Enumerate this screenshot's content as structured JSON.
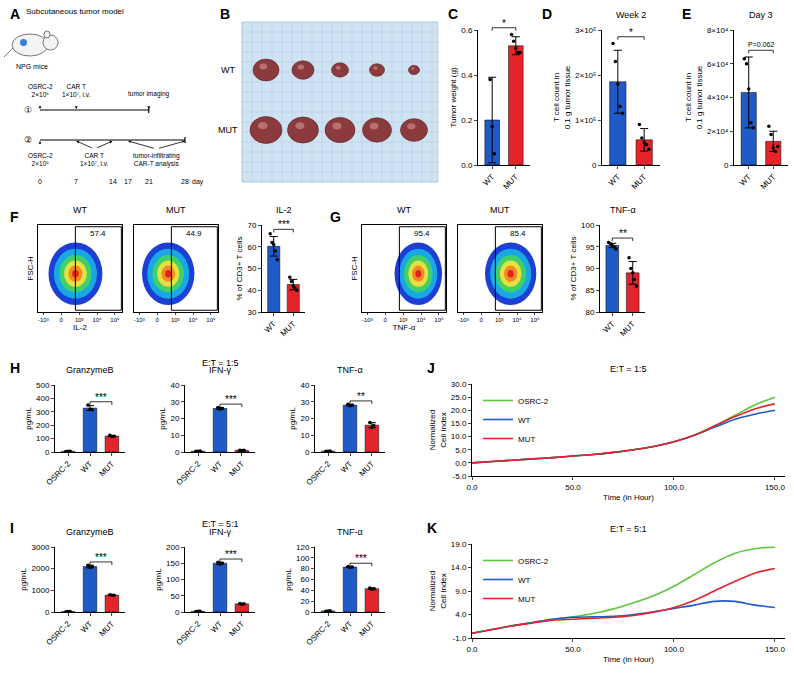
{
  "chart_data": [
    {
      "panel": "C",
      "type": "bar",
      "ylabel": "Tumor weight (g)",
      "categories": [
        "WT",
        "MUT"
      ],
      "colors": [
        "#1e5bc6",
        "#e3242b"
      ],
      "values": [
        0.2,
        0.53
      ],
      "error": [
        0.19,
        0.04
      ],
      "points": [
        [
          0.38,
          0.17,
          0.05
        ],
        [
          0.58,
          0.55,
          0.52,
          0.5,
          0.5
        ]
      ],
      "ylim": [
        0,
        0.6
      ],
      "yticks": [
        {
          "value": 0,
          "label": "0.0"
        },
        0.2,
        0.4,
        0.6
      ],
      "annotation": "*"
    },
    {
      "panel": "D",
      "type": "bar",
      "title": "Week 2",
      "ylabel": "T cell count in 0.1 g tumor tissue",
      "categories": [
        "WT",
        "MUT"
      ],
      "colors": [
        "#1e5bc6",
        "#e3242b"
      ],
      "values": [
        185000,
        56000
      ],
      "error": [
        70000,
        25000
      ],
      "points": [
        [
          270000,
          230000,
          180000,
          130000,
          115000
        ],
        [
          90000,
          60000,
          50000,
          45000,
          35000
        ]
      ],
      "ylim": [
        0,
        300000
      ],
      "yticks": [
        0,
        {
          "value": 100000,
          "label": "1×10⁵"
        },
        {
          "value": 200000,
          "label": "2×10⁵"
        },
        {
          "value": 300000,
          "label": "3×10⁵"
        }
      ],
      "annotation": "*"
    },
    {
      "panel": "E",
      "type": "bar",
      "title": "Day 3",
      "ylabel": "T cell count in 0.1 g tumor tissue",
      "categories": [
        "WT",
        "MUT"
      ],
      "colors": [
        "#1e5bc6",
        "#e3242b"
      ],
      "values": [
        43000,
        14000
      ],
      "error": [
        21000,
        6000
      ],
      "points": [
        [
          63000,
          60000,
          45000,
          25000,
          22000
        ],
        [
          23000,
          18000,
          10000,
          8000,
          11000
        ]
      ],
      "ylim": [
        0,
        80000
      ],
      "yticks": [
        0,
        {
          "value": 20000,
          "label": "2×10⁴"
        },
        {
          "value": 40000,
          "label": "4×10⁴"
        },
        {
          "value": 60000,
          "label": "6×10⁴"
        },
        {
          "value": 80000,
          "label": "8×10⁴"
        }
      ],
      "annotation": "P=0.062"
    },
    {
      "panel": "F",
      "type": "density",
      "title": "WT",
      "xlabel": "IL-2",
      "ylabel": "FSC-H",
      "xlim": [
        -2000,
        250000
      ],
      "xticks": [
        {
          "value": -1000,
          "label": "-10³"
        },
        0,
        {
          "value": 1000,
          "label": "10³"
        },
        {
          "value": 10000,
          "label": "10⁴"
        },
        {
          "value": 100000,
          "label": "10⁵"
        }
      ],
      "ylim": [
        0,
        250000
      ],
      "tick_labels": "x",
      "population_x": [
        -500,
        20000
      ],
      "population_y": [
        20000,
        200000
      ],
      "gate_x": [
        600,
        230000
      ],
      "gate_y": [
        5000,
        245000
      ],
      "gate_label": "57.4"
    },
    {
      "type": "density",
      "title": "MUT",
      "xlim": [
        -2000,
        250000
      ],
      "xticks": [
        {
          "value": -1000,
          "label": "-10³"
        },
        0,
        {
          "value": 1000,
          "label": "10³"
        },
        {
          "value": 10000,
          "label": "10⁴"
        },
        {
          "value": 100000,
          "label": "10⁵"
        }
      ],
      "ylim": [
        0,
        250000
      ],
      "tick_labels": "x",
      "population_x": [
        -700,
        12000
      ],
      "population_y": [
        20000,
        200000
      ],
      "gate_x": [
        600,
        230000
      ],
      "gate_y": [
        5000,
        245000
      ],
      "gate_label": "44.9"
    },
    {
      "type": "bar",
      "title": "IL-2",
      "ylabel": "% of CD3+ T cells",
      "categories": [
        "WT",
        "MUT"
      ],
      "colors": [
        "#1e5bc6",
        "#e3242b"
      ],
      "values": [
        60.2,
        42.6
      ],
      "error": [
        4.5,
        2.4
      ],
      "points": [
        [
          66,
          62,
          61,
          58,
          54
        ],
        [
          46,
          44,
          42,
          41,
          40
        ]
      ],
      "ylim": [
        30,
        70
      ],
      "yticks": [
        30,
        40,
        50,
        60,
        70
      ],
      "annotation": "***"
    },
    {
      "panel": "G",
      "type": "density",
      "title": "WT",
      "xlabel": "TNF-α",
      "ylabel": "FSC-H",
      "xlim": [
        -2000,
        250000
      ],
      "xticks": [
        {
          "value": -1000,
          "label": "-10³"
        },
        0,
        {
          "value": 1000,
          "label": "10³"
        },
        {
          "value": 10000,
          "label": "10⁴"
        },
        {
          "value": 100000,
          "label": "10⁵"
        }
      ],
      "ylim": [
        0,
        250000
      ],
      "tick_labels": "x",
      "population_x": [
        300,
        150000
      ],
      "population_y": [
        20000,
        200000
      ],
      "gate_x": [
        600,
        230000
      ],
      "gate_y": [
        5000,
        245000
      ],
      "gate_label": "95.4"
    },
    {
      "type": "density",
      "title": "MUT",
      "xlim": [
        -2000,
        250000
      ],
      "xticks": [
        {
          "value": -1000,
          "label": "-10³"
        },
        0,
        {
          "value": 1000,
          "label": "10³"
        },
        {
          "value": 10000,
          "label": "10⁴"
        },
        {
          "value": 100000,
          "label": "10⁵"
        }
      ],
      "ylim": [
        0,
        250000
      ],
      "tick_labels": "x",
      "population_x": [
        100,
        120000
      ],
      "population_y": [
        20000,
        200000
      ],
      "gate_x": [
        600,
        230000
      ],
      "gate_y": [
        5000,
        245000
      ],
      "gate_label": "85.4"
    },
    {
      "type": "bar",
      "title": "TNF-α",
      "ylabel": "% of CD3+ T cells",
      "categories": [
        "WT",
        "MUT"
      ],
      "colors": [
        "#1e5bc6",
        "#e3242b"
      ],
      "values": [
        95.3,
        89
      ],
      "error": [
        0.5,
        2.6
      ],
      "points": [
        [
          96,
          95.7,
          95.3,
          95,
          94.5
        ],
        [
          92.5,
          90,
          89,
          87.5,
          86
        ]
      ],
      "ylim": [
        80,
        100
      ],
      "yticks": [
        80,
        85,
        90,
        95,
        100
      ],
      "annotation": "**"
    },
    {
      "panel": "H",
      "group_title": "E:T = 1:5",
      "type": "bar",
      "title": "GranzymeB",
      "ylabel": "pg/mL",
      "categories": [
        "OSRC-2",
        "WT",
        "MUT"
      ],
      "colors": [
        "#3cb44b",
        "#1e5bc6",
        "#e3242b"
      ],
      "values": [
        5,
        328,
        119
      ],
      "error": [
        2,
        18,
        5
      ],
      "points": [
        [
          4,
          5,
          6
        ],
        [
          350,
          318,
          316
        ],
        [
          125,
          115,
          117
        ]
      ],
      "ylim": [
        0,
        500
      ],
      "yticks": [
        0,
        100,
        200,
        300,
        400,
        500
      ],
      "annotation": "***"
    },
    {
      "type": "bar",
      "title": "IFN-γ",
      "ylabel": "pg/mL",
      "categories": [
        "OSRC-2",
        "WT",
        "MUT"
      ],
      "colors": [
        "#3cb44b",
        "#1e5bc6",
        "#e3242b"
      ],
      "values": [
        0.5,
        26,
        1
      ],
      "error": [
        0.2,
        0.6,
        0.2
      ],
      "points": [
        [
          0.4,
          0.5,
          0.6
        ],
        [
          26.6,
          25.5,
          25.9
        ],
        [
          1.1,
          0.9,
          1.0
        ]
      ],
      "ylim": [
        0,
        40
      ],
      "yticks": [
        0,
        10,
        20,
        30,
        40
      ],
      "annotation": "***"
    },
    {
      "type": "bar",
      "title": "TNF-α",
      "ylabel": "pg/mL",
      "categories": [
        "OSRC-2",
        "WT",
        "MUT"
      ],
      "colors": [
        "#3cb44b",
        "#1e5bc6",
        "#e3242b"
      ],
      "values": [
        0.5,
        28,
        16
      ],
      "error": [
        0.2,
        0.5,
        1.5
      ],
      "points": [
        [
          0.4,
          0.5,
          0.6
        ],
        [
          28.5,
          27.6,
          27.9
        ],
        [
          17.6,
          14.6,
          15.8
        ]
      ],
      "ylim": [
        0,
        40
      ],
      "yticks": [
        0,
        10,
        20,
        30,
        40
      ],
      "annotation": "**"
    },
    {
      "panel": "I",
      "group_title": "E:T = 5:1",
      "type": "bar",
      "title": "GranzymeB",
      "ylabel": "pg/mL",
      "categories": [
        "OSRC-2",
        "WT",
        "MUT"
      ],
      "colors": [
        "#3cb44b",
        "#1e5bc6",
        "#e3242b"
      ],
      "values": [
        20,
        2100,
        780
      ],
      "error": [
        5,
        60,
        15
      ],
      "points": [
        [
          15,
          20,
          25
        ],
        [
          2160,
          2050,
          2090
        ],
        [
          795,
          770,
          775
        ]
      ],
      "ylim": [
        0,
        3000
      ],
      "yticks": [
        0,
        1000,
        2000,
        3000
      ],
      "annotation": "***"
    },
    {
      "type": "bar",
      "title": "IFN-γ",
      "ylabel": "pg/mL",
      "categories": [
        "OSRC-2",
        "WT",
        "MUT"
      ],
      "colors": [
        "#3cb44b",
        "#1e5bc6",
        "#e3242b"
      ],
      "values": [
        2,
        150,
        25
      ],
      "error": [
        0.5,
        3,
        1.5
      ],
      "points": [
        [
          1.5,
          2,
          2.5
        ],
        [
          153,
          147,
          150
        ],
        [
          26.5,
          23.5,
          25
        ]
      ],
      "ylim": [
        0,
        200
      ],
      "yticks": [
        0,
        50,
        100,
        150,
        200
      ],
      "annotation": "***"
    },
    {
      "type": "bar",
      "title": "TNF-α",
      "ylabel": "pg/mL",
      "categories": [
        "OSRC-2",
        "WT",
        "MUT"
      ],
      "colors": [
        "#3cb44b",
        "#1e5bc6",
        "#e3242b"
      ],
      "values": [
        2,
        83,
        43
      ],
      "error": [
        0.5,
        1,
        1.2
      ],
      "points": [
        [
          1.5,
          2,
          2.5
        ],
        [
          84,
          82,
          83
        ],
        [
          44.2,
          41.8,
          43
        ]
      ],
      "ylim": [
        0,
        120
      ],
      "yticks": [
        0,
        20,
        40,
        60,
        80,
        100,
        120
      ],
      "annotation": "***"
    },
    {
      "panel": "J",
      "type": "line",
      "title": "E:T = 1:5",
      "xlabel": "Time (in Hour)",
      "ylabel": "Normalized Cell Index",
      "legend": "upper left",
      "x": [
        0,
        10,
        20,
        30,
        40,
        50,
        60,
        70,
        80,
        90,
        100,
        110,
        120,
        130,
        140,
        150
      ],
      "series": [
        {
          "name": "OSRC-2",
          "color": "#5fc63d",
          "values": [
            0,
            0.5,
            1,
            1.5,
            2,
            2.6,
            3.2,
            4,
            5,
            6.2,
            8,
            10.5,
            14,
            18,
            22,
            25
          ]
        },
        {
          "name": "WT",
          "color": "#1e5bc6",
          "values": [
            0,
            0.5,
            1,
            1.5,
            2,
            2.6,
            3.2,
            4,
            5,
            6.2,
            8,
            10.5,
            13.5,
            16.5,
            18.5,
            20
          ]
        },
        {
          "name": "MUT",
          "color": "#e3242b",
          "values": [
            0,
            0.5,
            1,
            1.5,
            2,
            2.6,
            3.2,
            4,
            5,
            6.2,
            8,
            10.5,
            14,
            17.5,
            20.5,
            22.5
          ]
        }
      ],
      "xlim": [
        0,
        155
      ],
      "xticks": [
        {
          "value": 0,
          "label": "0.0"
        },
        {
          "value": 50,
          "label": "50.0"
        },
        {
          "value": 100,
          "label": "100.0"
        },
        {
          "value": 150,
          "label": "150.0"
        }
      ],
      "ylim": [
        -5,
        30
      ],
      "yticks": [
        {
          "value": -5,
          "label": "-5.0"
        },
        {
          "value": 0,
          "label": "0.0"
        },
        {
          "value": 5,
          "label": "5.0"
        },
        {
          "value": 10,
          "label": "10.0"
        },
        {
          "value": 15,
          "label": "15.0"
        },
        {
          "value": 20,
          "label": "20.0"
        },
        {
          "value": 25,
          "label": "25.0"
        },
        {
          "value": 30,
          "label": "30.0"
        }
      ]
    },
    {
      "panel": "K",
      "type": "line",
      "title": "E:T = 5:1",
      "xlabel": "Time (in Hour)",
      "ylabel": "Normalized Cell Index",
      "legend": "upper left",
      "x": [
        0,
        10,
        20,
        30,
        40,
        50,
        60,
        70,
        80,
        90,
        100,
        110,
        120,
        130,
        140,
        150
      ],
      "series": [
        {
          "name": "OSRC-2",
          "color": "#5fc63d",
          "values": [
            0,
            0.8,
            1.6,
            2.3,
            3.0,
            3.5,
            4.2,
            5.2,
            6.5,
            8.0,
            10.0,
            12.5,
            15.0,
            17.0,
            18.0,
            18.3
          ]
        },
        {
          "name": "WT",
          "color": "#1e5bc6",
          "values": [
            0,
            0.8,
            1.6,
            2.3,
            3.0,
            3.4,
            3.5,
            3.6,
            4.0,
            4.6,
            5.3,
            6.0,
            6.8,
            6.8,
            6.0,
            5.5
          ]
        },
        {
          "name": "MUT",
          "color": "#e3242b",
          "values": [
            0,
            0.8,
            1.6,
            2.2,
            2.8,
            3.0,
            3.2,
            3.4,
            3.8,
            4.5,
            5.5,
            7.0,
            9.0,
            11.0,
            12.8,
            13.8
          ]
        }
      ],
      "xlim": [
        0,
        155
      ],
      "xticks": [
        {
          "value": 0,
          "label": "0.0"
        },
        {
          "value": 50,
          "label": "50.0"
        },
        {
          "value": 100,
          "label": "100.0"
        },
        {
          "value": 150,
          "label": "150.0"
        }
      ],
      "ylim": [
        -1,
        19
      ],
      "yticks": [
        {
          "value": -1,
          "label": "-1.0"
        },
        {
          "value": 4,
          "label": "4.0"
        },
        {
          "value": 9,
          "label": "9.0"
        },
        {
          "value": 14,
          "label": "14.0"
        },
        {
          "value": 19,
          "label": "19.0"
        }
      ]
    }
  ],
  "schematic": {
    "panel": "A",
    "title": "Subcutaneous tumor model",
    "host": "NPG mice",
    "axis_label": "day",
    "days": [
      0,
      7,
      14,
      17,
      21,
      28
    ],
    "rows": [
      {
        "label": "①",
        "end": 21,
        "events": [
          {
            "days": [
              0
            ],
            "lines": [
              "OSRC-2",
              "2×10⁶"
            ]
          },
          {
            "days": [
              7
            ],
            "lines": [
              "CAR T",
              "1×10⁷, i.v."
            ]
          },
          {
            "days": [
              21
            ],
            "lines": [
              "tumor imaging"
            ]
          }
        ]
      },
      {
        "label": "②",
        "end": 28,
        "events": [
          {
            "days": [
              0
            ],
            "lines": [
              "OSRC-2",
              "2×10⁶"
            ]
          },
          {
            "days": [
              7,
              14
            ],
            "lines": [
              "CAR T",
              "1×10⁷, i.v."
            ]
          },
          {
            "days": [
              17,
              28
            ],
            "lines": [
              "tumor-infiltrating",
              "CAR-T analysis"
            ]
          }
        ]
      }
    ]
  },
  "photo": {
    "panel": "B",
    "rows": [
      {
        "label": "WT",
        "count": 5
      },
      {
        "label": "MUT",
        "count": 5
      }
    ]
  }
}
